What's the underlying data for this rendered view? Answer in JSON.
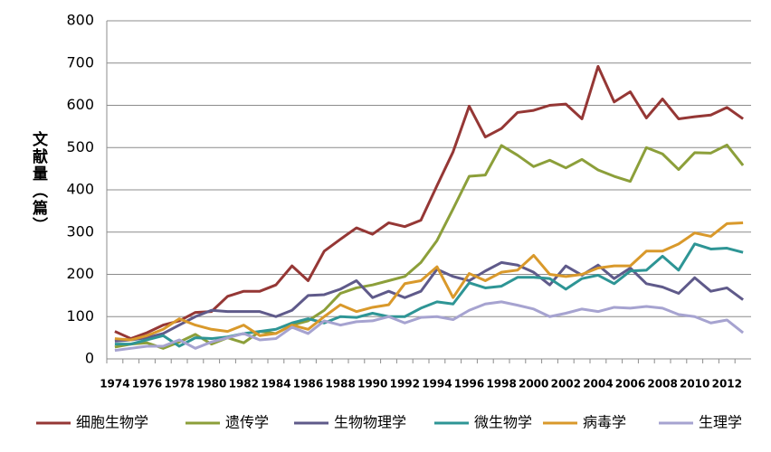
{
  "chart_data": {
    "type": "line",
    "y_label": "文献量（篇）",
    "categories": [
      "1974",
      null,
      "1976",
      null,
      "1978",
      null,
      "1980",
      null,
      "1982",
      null,
      "1984",
      null,
      "1986",
      null,
      "1988",
      null,
      "1990",
      null,
      "1992",
      null,
      "1994",
      null,
      "1996",
      null,
      "1998",
      null,
      "2000",
      null,
      "2002",
      null,
      "2004",
      null,
      "2006",
      null,
      "2008",
      null,
      "2010",
      null,
      "2012",
      null
    ],
    "ylim": [
      0,
      800
    ],
    "yticks": [
      0,
      100,
      200,
      300,
      400,
      500,
      600,
      700,
      800
    ],
    "grid": true,
    "legend": "bottom",
    "series": [
      {
        "name": "细胞生物学",
        "color": "#953735",
        "values": [
          65,
          48,
          62,
          80,
          90,
          110,
          112,
          148,
          160,
          160,
          175,
          220,
          185,
          255,
          283,
          310,
          295,
          322,
          313,
          328,
          410,
          490,
          598,
          525,
          545,
          583,
          588,
          600,
          603,
          568,
          692,
          608,
          632,
          570,
          615,
          568,
          573,
          577,
          595,
          568
        ]
      },
      {
        "name": "遗传学",
        "color": "#8c9f3a",
        "values": [
          28,
          35,
          38,
          25,
          40,
          58,
          35,
          50,
          38,
          65,
          60,
          80,
          90,
          115,
          155,
          168,
          175,
          185,
          195,
          228,
          280,
          355,
          432,
          435,
          505,
          482,
          455,
          470,
          452,
          472,
          447,
          432,
          420,
          500,
          485,
          448,
          488,
          487,
          506,
          458
        ]
      },
      {
        "name": "生物物理学",
        "color": "#5f5a8a",
        "values": [
          42,
          45,
          50,
          60,
          80,
          100,
          115,
          112,
          112,
          112,
          100,
          115,
          150,
          152,
          165,
          185,
          145,
          160,
          145,
          160,
          212,
          195,
          185,
          208,
          228,
          222,
          205,
          175,
          220,
          198,
          222,
          190,
          215,
          178,
          170,
          155,
          192,
          160,
          168,
          140
        ]
      },
      {
        "name": "微生物学",
        "color": "#2e9595",
        "values": [
          35,
          35,
          45,
          55,
          30,
          50,
          48,
          52,
          60,
          65,
          70,
          85,
          95,
          85,
          100,
          98,
          108,
          100,
          100,
          120,
          135,
          130,
          180,
          168,
          172,
          193,
          193,
          190,
          165,
          190,
          198,
          178,
          208,
          210,
          243,
          210,
          272,
          260,
          262,
          252
        ]
      },
      {
        "name": "病毒学",
        "color": "#d9992b",
        "values": [
          48,
          45,
          55,
          70,
          95,
          80,
          70,
          65,
          80,
          55,
          60,
          80,
          70,
          100,
          128,
          112,
          122,
          128,
          178,
          185,
          218,
          145,
          202,
          185,
          205,
          210,
          245,
          200,
          195,
          200,
          215,
          220,
          220,
          255,
          255,
          272,
          298,
          290,
          320,
          322
        ]
      },
      {
        "name": "生理学",
        "color": "#a6a3d0",
        "values": [
          20,
          25,
          30,
          30,
          45,
          25,
          40,
          50,
          60,
          45,
          48,
          75,
          60,
          90,
          80,
          88,
          90,
          100,
          85,
          98,
          100,
          93,
          115,
          130,
          135,
          127,
          118,
          100,
          108,
          118,
          112,
          122,
          120,
          124,
          120,
          105,
          100,
          85,
          92,
          62
        ]
      }
    ]
  }
}
